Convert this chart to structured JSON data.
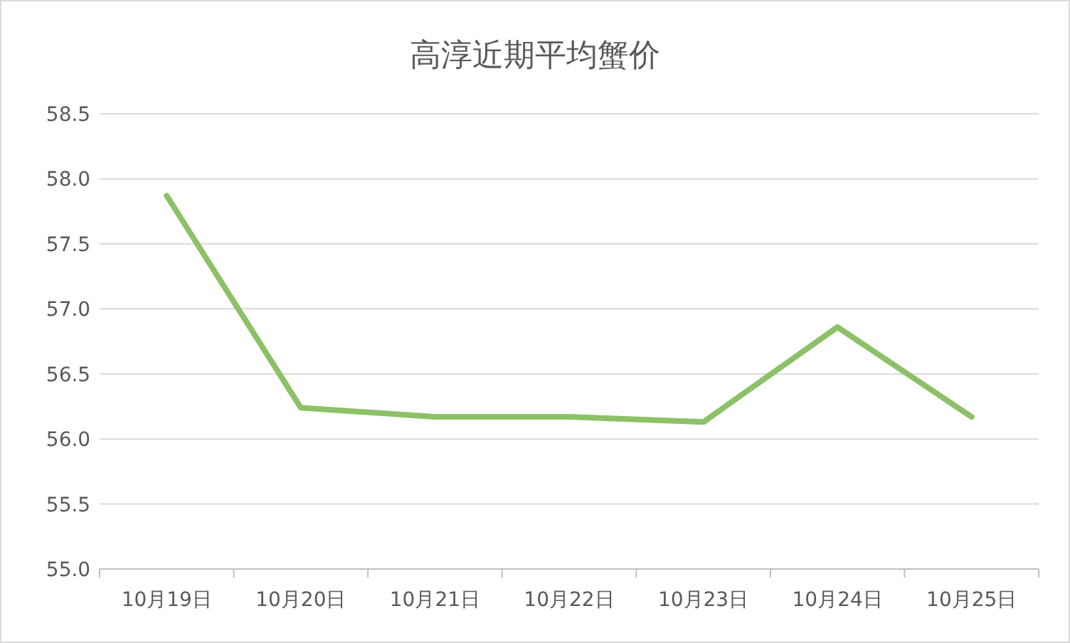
{
  "chart_data": {
    "type": "line",
    "title": "高淳近期平均蟹价",
    "categories": [
      "10月19日",
      "10月20日",
      "10月21日",
      "10月22日",
      "10月23日",
      "10月24日",
      "10月25日"
    ],
    "values": [
      57.87,
      56.24,
      56.17,
      56.17,
      56.13,
      56.86,
      56.17
    ],
    "color": "#8cc168",
    "ylim": [
      55.0,
      58.5
    ],
    "yticks": [
      {
        "value": 55.0,
        "label": "55.0"
      },
      {
        "value": 55.5,
        "label": "55.5"
      },
      {
        "value": 56.0,
        "label": "56.0"
      },
      {
        "value": 56.5,
        "label": "56.5"
      },
      {
        "value": 57.0,
        "label": "57.0"
      },
      {
        "value": 57.5,
        "label": "57.5"
      },
      {
        "value": 58.0,
        "label": "58.0"
      },
      {
        "value": 58.5,
        "label": "58.5"
      }
    ],
    "grid": "y"
  }
}
